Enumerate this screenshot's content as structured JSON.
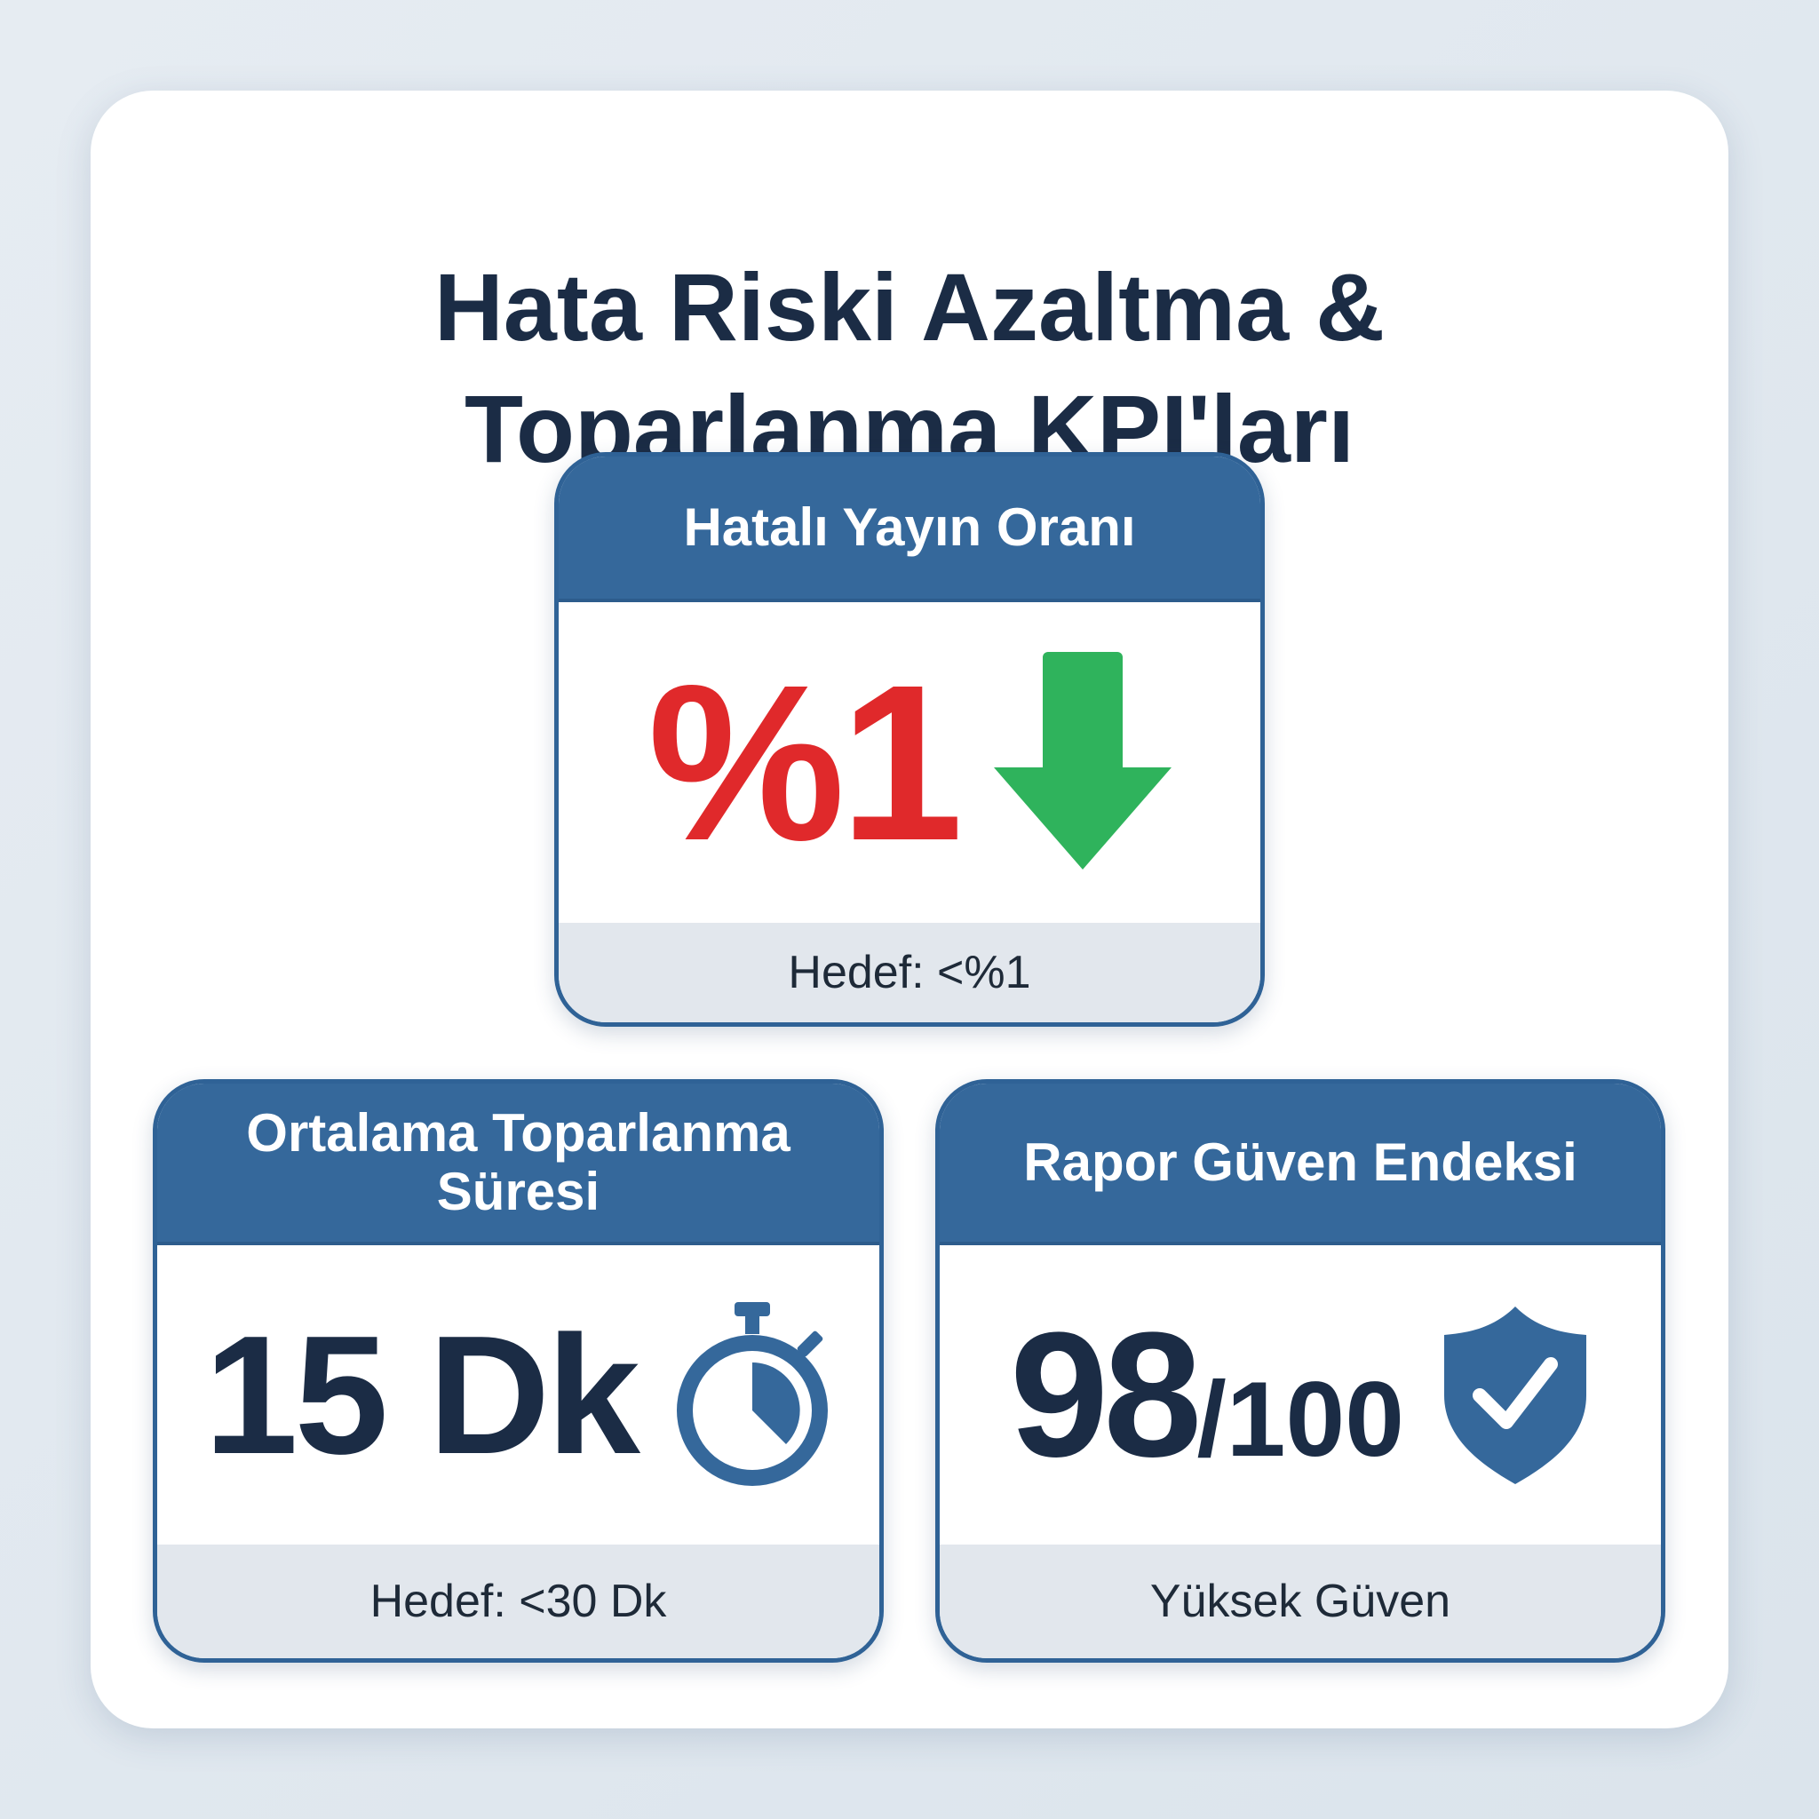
{
  "title": {
    "line1": "Hata Riski Azaltma &",
    "line2": "Toparlanma KPI'ları"
  },
  "colors": {
    "header": "#35689b",
    "navy": "#1b2c45",
    "red": "#e0292b",
    "green": "#2fb35c"
  },
  "kpis": [
    {
      "title": "Hatalı Yayın Oranı",
      "value": "%1",
      "icon": "arrow-down-icon",
      "footer": "Hedef: <%1"
    },
    {
      "title": "Ortalama Toparlanma Süresi",
      "value": "15 Dk",
      "icon": "stopwatch-icon",
      "footer": "Hedef: <30 Dk"
    },
    {
      "title": "Rapor Güven Endeksi",
      "value": "98",
      "suffix": "/100",
      "icon": "shield-check-icon",
      "footer": "Yüksek Güven"
    }
  ]
}
